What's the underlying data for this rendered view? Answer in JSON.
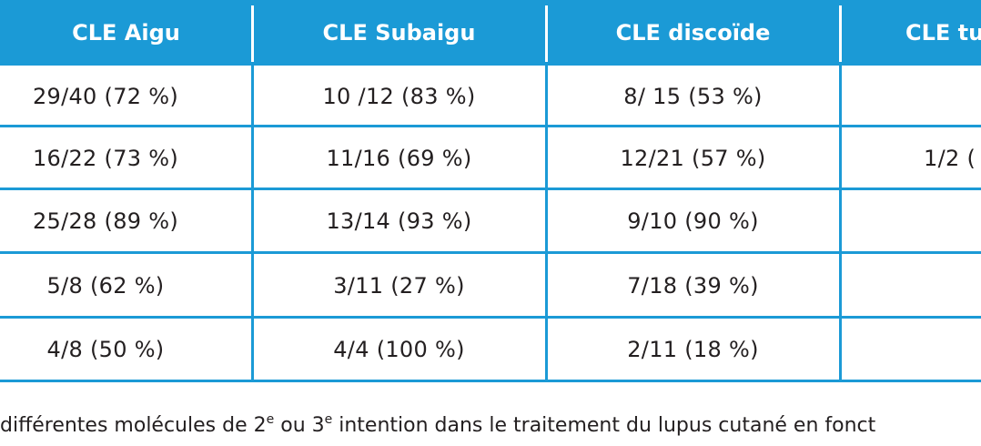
{
  "table": {
    "headers": [
      "CLE Aigu",
      "CLE Subaigu",
      "CLE discoïde",
      "CLE tu"
    ],
    "rows": [
      [
        "29/40 (72 %)",
        "10 /12 (83 %)",
        "8/ 15 (53 %)",
        ""
      ],
      [
        "16/22 (73 %)",
        "11/16 (69 %)",
        "12/21 (57 %)",
        "1/2 ("
      ],
      [
        "25/28 (89 %)",
        "13/14 (93 %)",
        "9/10 (90 %)",
        ""
      ],
      [
        "5/8 (62 %)",
        "3/11 (27 %)",
        "7/18 (39 %)",
        ""
      ],
      [
        "4/8 (50 %)",
        "4/4 (100 %)",
        "2/11 (18 %)",
        ""
      ]
    ]
  },
  "caption": {
    "part1": "différentes molécules de 2",
    "sup1": "e",
    "part2": " ou 3",
    "sup2": "e",
    "part3": " intention dans le traitement du lupus cutané en fonct"
  },
  "colors": {
    "header_bg": "#1b9ad6",
    "grid": "#1b9ad6",
    "text": "#231f20"
  }
}
